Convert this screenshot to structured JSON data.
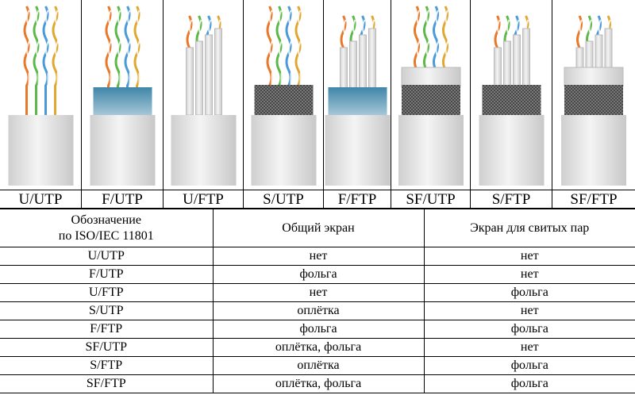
{
  "cables": [
    {
      "label": "U/UTP",
      "overall_shield": "none",
      "pair_shield": false
    },
    {
      "label": "F/UTP",
      "overall_shield": "foil",
      "pair_shield": false
    },
    {
      "label": "U/FTP",
      "overall_shield": "none",
      "pair_shield": true
    },
    {
      "label": "S/UTP",
      "overall_shield": "braid",
      "pair_shield": false
    },
    {
      "label": "F/FTP",
      "overall_shield": "foil",
      "pair_shield": true
    },
    {
      "label": "SF/UTP",
      "overall_shield": "braid+foil",
      "pair_shield": false
    },
    {
      "label": "S/FTP",
      "overall_shield": "braid",
      "pair_shield": true
    },
    {
      "label": "SF/FTP",
      "overall_shield": "braid+foil",
      "pair_shield": true
    }
  ],
  "table": {
    "headers": [
      "Обозначение",
      "по ISO/IEC 11801",
      "Общий экран",
      "Экран для свитых пар"
    ],
    "rows": [
      [
        "U/UTP",
        "нет",
        "нет"
      ],
      [
        "F/UTP",
        "фольга",
        "нет"
      ],
      [
        "U/FTP",
        "нет",
        "фольга"
      ],
      [
        "S/UTP",
        "оплётка",
        "нет"
      ],
      [
        "F/FTP",
        "фольга",
        "фольга"
      ],
      [
        "SF/UTP",
        "оплётка, фольга",
        "нет"
      ],
      [
        "S/FTP",
        "оплётка",
        "фольга"
      ],
      [
        "SF/FTP",
        "оплётка, фольга",
        "фольга"
      ]
    ]
  },
  "colors": {
    "wires": [
      "#e8782a",
      "#5cb848",
      "#4a9ad8",
      "#e0a830"
    ],
    "foil": "#4f8fb0",
    "braid": "#777777",
    "jacket": "#e6e6e6"
  }
}
